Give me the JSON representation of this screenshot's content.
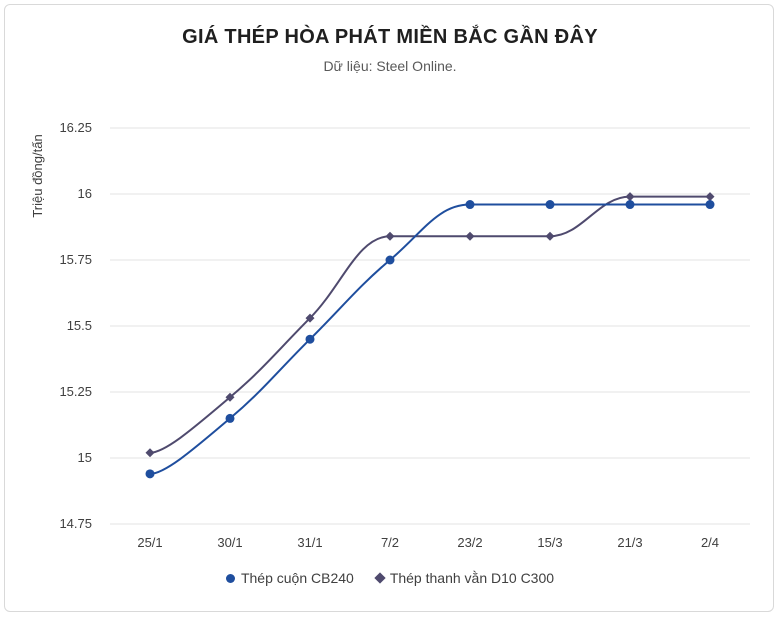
{
  "chart_data": {
    "type": "line",
    "title": "GIÁ THÉP HÒA PHÁT MIỀN BẮC GẦN ĐÂY",
    "subtitle": "Dữ liệu: Steel Online.",
    "ylabel": "Triệu đồng/tấn",
    "xlabel": "",
    "categories": [
      "25/1",
      "30/1",
      "31/1",
      "7/2",
      "23/2",
      "15/3",
      "21/3",
      "2/4"
    ],
    "ylim": [
      14.75,
      16.25
    ],
    "yticks": [
      14.75,
      15,
      15.25,
      15.5,
      15.75,
      16,
      16.25
    ],
    "ytick_labels": [
      "14.75",
      "15",
      "15.25",
      "15.5",
      "15.75",
      "16",
      "16.25"
    ],
    "grid": true,
    "legend_position": "bottom",
    "series": [
      {
        "name": "Thép cuộn CB240",
        "values": [
          14.94,
          15.15,
          15.45,
          15.75,
          15.96,
          15.96,
          15.96,
          15.96
        ],
        "color": "#1f4e9e",
        "marker": "circle"
      },
      {
        "name": "Thép thanh vằn D10 C300",
        "values": [
          15.02,
          15.23,
          15.53,
          15.84,
          15.84,
          15.84,
          15.99,
          15.99
        ],
        "color": "#4f4a6e",
        "marker": "diamond"
      }
    ]
  }
}
